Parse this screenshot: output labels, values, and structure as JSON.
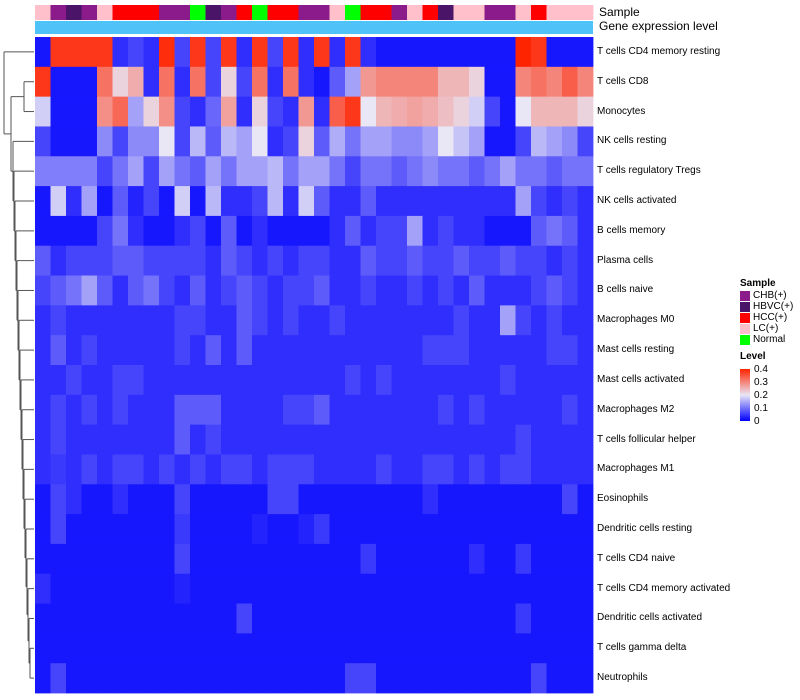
{
  "annotations": {
    "sample_label": "Sample",
    "expression_label": "Gene expression level"
  },
  "legend": {
    "sample_title": "Sample",
    "level_title": "Level",
    "sample_items": [
      {
        "label": "CHB(+)",
        "color": "#8b1a8b"
      },
      {
        "label": "HBVC(+)",
        "color": "#4a1468"
      },
      {
        "label": "HCC(+)",
        "color": "#ff0000"
      },
      {
        "label": "LC(+)",
        "color": "#ffc0cb"
      },
      {
        "label": "Normal",
        "color": "#00ff00"
      }
    ],
    "level_ticks": [
      "0.4",
      "0.3",
      "0.2",
      "0.1",
      "0"
    ]
  },
  "chart_data": {
    "type": "heatmap",
    "title": "",
    "value_range": [
      0,
      0.4
    ],
    "color_scale": [
      "#0000ff",
      "#e9e6f5",
      "#ff2400"
    ],
    "expression_bar_color": "#4fc3f7",
    "sample_colors": {
      "CHB(+)": "#8b1a8b",
      "HBVC(+)": "#4a1468",
      "HCC(+)": "#ff0000",
      "LC(+)": "#ffc0cb",
      "Normal": "#00ff00"
    },
    "column_samples": [
      "LC(+)",
      "CHB(+)",
      "HBVC(+)",
      "CHB(+)",
      "LC(+)",
      "HCC(+)",
      "HCC(+)",
      "HCC(+)",
      "CHB(+)",
      "CHB(+)",
      "Normal",
      "HBVC(+)",
      "CHB(+)",
      "HCC(+)",
      "Normal",
      "HCC(+)",
      "HCC(+)",
      "CHB(+)",
      "CHB(+)",
      "LC(+)",
      "Normal",
      "HCC(+)",
      "HCC(+)",
      "CHB(+)",
      "LC(+)",
      "HCC(+)",
      "HBVC(+)",
      "LC(+)",
      "LC(+)",
      "CHB(+)",
      "CHB(+)",
      "LC(+)",
      "HCC(+)",
      "LC(+)",
      "LC(+)",
      "LC(+)"
    ],
    "rows": [
      "T cells CD4 memory resting",
      "T cells CD8",
      "Monocytes",
      "NK cells resting",
      "T cells regulatory  Tregs",
      "NK cells activated",
      "B cells memory",
      "Plasma cells",
      "B cells naive",
      "Macrophages M0",
      "Mast cells resting",
      "Mast cells activated",
      "Macrophages M2",
      "T cells follicular helper",
      "Macrophages M1",
      "Eosinophils",
      "Dendritic cells resting",
      "T cells CD4 naive",
      "T cells CD4 memory activated",
      "Dendritic cells activated",
      "T cells gamma delta",
      "Neutrophils"
    ],
    "values": [
      [
        0.02,
        0.38,
        0.38,
        0.38,
        0.38,
        0.04,
        0.06,
        0.04,
        0.39,
        0.06,
        0.38,
        0.06,
        0.38,
        0.04,
        0.38,
        0.06,
        0.38,
        0.04,
        0.38,
        0.04,
        0.38,
        0.04,
        0.02,
        0.02,
        0.02,
        0.02,
        0.02,
        0.02,
        0.02,
        0.02,
        0.02,
        0.4,
        0.38,
        0.02,
        0.02,
        0.02
      ],
      [
        0.38,
        0.02,
        0.02,
        0.02,
        0.32,
        0.22,
        0.26,
        0.04,
        0.32,
        0.04,
        0.32,
        0.06,
        0.22,
        0.06,
        0.32,
        0.04,
        0.32,
        0.04,
        0.02,
        0.08,
        0.14,
        0.28,
        0.3,
        0.3,
        0.3,
        0.3,
        0.25,
        0.25,
        0.22,
        0.02,
        0.02,
        0.3,
        0.32,
        0.3,
        0.34,
        0.3
      ],
      [
        0.18,
        0.02,
        0.02,
        0.02,
        0.29,
        0.33,
        0.14,
        0.22,
        0.29,
        0.06,
        0.04,
        0.09,
        0.27,
        0.04,
        0.22,
        0.06,
        0.04,
        0.28,
        0.04,
        0.34,
        0.38,
        0.2,
        0.25,
        0.26,
        0.27,
        0.26,
        0.24,
        0.22,
        0.18,
        0.06,
        0.02,
        0.2,
        0.25,
        0.25,
        0.25,
        0.22
      ],
      [
        0.06,
        0.02,
        0.02,
        0.02,
        0.12,
        0.06,
        0.12,
        0.12,
        0.2,
        0.06,
        0.16,
        0.08,
        0.16,
        0.14,
        0.2,
        0.04,
        0.06,
        0.22,
        0.08,
        0.15,
        0.1,
        0.14,
        0.14,
        0.12,
        0.12,
        0.14,
        0.2,
        0.17,
        0.14,
        0.02,
        0.02,
        0.06,
        0.16,
        0.14,
        0.12,
        0.06
      ],
      [
        0.11,
        0.11,
        0.11,
        0.11,
        0.06,
        0.1,
        0.14,
        0.06,
        0.14,
        0.1,
        0.08,
        0.14,
        0.1,
        0.14,
        0.14,
        0.16,
        0.1,
        0.14,
        0.14,
        0.1,
        0.06,
        0.1,
        0.1,
        0.08,
        0.1,
        0.12,
        0.1,
        0.1,
        0.08,
        0.1,
        0.14,
        0.1,
        0.1,
        0.08,
        0.1,
        0.1
      ],
      [
        0.02,
        0.18,
        0.04,
        0.14,
        0.02,
        0.08,
        0.03,
        0.06,
        0.02,
        0.18,
        0.02,
        0.16,
        0.04,
        0.04,
        0.06,
        0.16,
        0.04,
        0.18,
        0.08,
        0.04,
        0.04,
        0.08,
        0.04,
        0.04,
        0.04,
        0.04,
        0.04,
        0.04,
        0.04,
        0.04,
        0.04,
        0.14,
        0.06,
        0.04,
        0.06,
        0.04
      ],
      [
        0.02,
        0.02,
        0.02,
        0.02,
        0.06,
        0.1,
        0.04,
        0.02,
        0.02,
        0.04,
        0.06,
        0.02,
        0.08,
        0.02,
        0.04,
        0.02,
        0.02,
        0.02,
        0.02,
        0.04,
        0.08,
        0.04,
        0.06,
        0.06,
        0.14,
        0.04,
        0.06,
        0.04,
        0.04,
        0.02,
        0.02,
        0.02,
        0.08,
        0.1,
        0.08,
        0.04
      ],
      [
        0.08,
        0.04,
        0.06,
        0.06,
        0.06,
        0.08,
        0.08,
        0.06,
        0.06,
        0.06,
        0.06,
        0.04,
        0.08,
        0.06,
        0.04,
        0.06,
        0.04,
        0.06,
        0.06,
        0.04,
        0.04,
        0.08,
        0.06,
        0.06,
        0.08,
        0.06,
        0.06,
        0.08,
        0.06,
        0.06,
        0.08,
        0.06,
        0.06,
        0.04,
        0.06,
        0.04
      ],
      [
        0.06,
        0.08,
        0.1,
        0.14,
        0.08,
        0.04,
        0.08,
        0.1,
        0.06,
        0.04,
        0.08,
        0.04,
        0.06,
        0.08,
        0.06,
        0.04,
        0.06,
        0.06,
        0.08,
        0.04,
        0.04,
        0.06,
        0.04,
        0.04,
        0.06,
        0.04,
        0.06,
        0.04,
        0.08,
        0.04,
        0.04,
        0.04,
        0.06,
        0.08,
        0.06,
        0.04
      ],
      [
        0.04,
        0.06,
        0.04,
        0.04,
        0.04,
        0.04,
        0.04,
        0.04,
        0.04,
        0.06,
        0.06,
        0.04,
        0.04,
        0.08,
        0.06,
        0.04,
        0.06,
        0.04,
        0.04,
        0.06,
        0.04,
        0.04,
        0.04,
        0.04,
        0.04,
        0.04,
        0.04,
        0.06,
        0.04,
        0.04,
        0.14,
        0.06,
        0.04,
        0.06,
        0.04,
        0.04
      ],
      [
        0.04,
        0.08,
        0.04,
        0.06,
        0.04,
        0.04,
        0.04,
        0.04,
        0.04,
        0.06,
        0.04,
        0.08,
        0.04,
        0.08,
        0.04,
        0.04,
        0.04,
        0.04,
        0.04,
        0.04,
        0.04,
        0.04,
        0.04,
        0.04,
        0.04,
        0.06,
        0.06,
        0.06,
        0.04,
        0.04,
        0.04,
        0.04,
        0.04,
        0.06,
        0.06,
        0.04
      ],
      [
        0.04,
        0.04,
        0.06,
        0.04,
        0.04,
        0.06,
        0.06,
        0.04,
        0.04,
        0.04,
        0.04,
        0.04,
        0.04,
        0.04,
        0.04,
        0.04,
        0.04,
        0.04,
        0.04,
        0.04,
        0.06,
        0.04,
        0.06,
        0.04,
        0.04,
        0.04,
        0.04,
        0.04,
        0.04,
        0.04,
        0.06,
        0.04,
        0.04,
        0.04,
        0.04,
        0.04
      ],
      [
        0.04,
        0.06,
        0.04,
        0.06,
        0.04,
        0.06,
        0.04,
        0.04,
        0.04,
        0.08,
        0.08,
        0.08,
        0.04,
        0.04,
        0.04,
        0.04,
        0.06,
        0.06,
        0.08,
        0.04,
        0.04,
        0.04,
        0.04,
        0.04,
        0.04,
        0.04,
        0.06,
        0.04,
        0.06,
        0.04,
        0.04,
        0.04,
        0.04,
        0.04,
        0.06,
        0.04
      ],
      [
        0.04,
        0.06,
        0.04,
        0.04,
        0.04,
        0.04,
        0.04,
        0.04,
        0.04,
        0.08,
        0.04,
        0.06,
        0.04,
        0.04,
        0.04,
        0.04,
        0.04,
        0.04,
        0.04,
        0.04,
        0.04,
        0.04,
        0.04,
        0.04,
        0.04,
        0.04,
        0.04,
        0.04,
        0.04,
        0.04,
        0.04,
        0.06,
        0.04,
        0.04,
        0.04,
        0.04
      ],
      [
        0.04,
        0.05,
        0.04,
        0.06,
        0.04,
        0.06,
        0.06,
        0.04,
        0.06,
        0.04,
        0.06,
        0.04,
        0.06,
        0.06,
        0.04,
        0.06,
        0.06,
        0.06,
        0.04,
        0.04,
        0.04,
        0.04,
        0.06,
        0.04,
        0.04,
        0.06,
        0.06,
        0.04,
        0.06,
        0.04,
        0.06,
        0.06,
        0.04,
        0.04,
        0.04,
        0.04
      ],
      [
        0.02,
        0.06,
        0.04,
        0.02,
        0.02,
        0.04,
        0.02,
        0.02,
        0.02,
        0.06,
        0.02,
        0.02,
        0.02,
        0.02,
        0.02,
        0.06,
        0.06,
        0.02,
        0.02,
        0.02,
        0.02,
        0.02,
        0.02,
        0.02,
        0.02,
        0.04,
        0.02,
        0.02,
        0.02,
        0.02,
        0.02,
        0.02,
        0.02,
        0.02,
        0.06,
        0.02
      ],
      [
        0.02,
        0.06,
        0.02,
        0.02,
        0.02,
        0.02,
        0.02,
        0.02,
        0.02,
        0.05,
        0.02,
        0.02,
        0.02,
        0.02,
        0.03,
        0.02,
        0.02,
        0.03,
        0.05,
        0.02,
        0.02,
        0.02,
        0.02,
        0.02,
        0.02,
        0.02,
        0.02,
        0.02,
        0.02,
        0.02,
        0.02,
        0.02,
        0.02,
        0.02,
        0.02,
        0.02
      ],
      [
        0.02,
        0.02,
        0.02,
        0.02,
        0.02,
        0.02,
        0.02,
        0.02,
        0.02,
        0.06,
        0.02,
        0.02,
        0.02,
        0.02,
        0.02,
        0.02,
        0.02,
        0.02,
        0.02,
        0.02,
        0.02,
        0.05,
        0.02,
        0.02,
        0.02,
        0.02,
        0.02,
        0.02,
        0.04,
        0.02,
        0.02,
        0.05,
        0.02,
        0.02,
        0.02,
        0.02
      ],
      [
        0.04,
        0.02,
        0.02,
        0.02,
        0.02,
        0.02,
        0.02,
        0.02,
        0.02,
        0.03,
        0.02,
        0.02,
        0.02,
        0.02,
        0.02,
        0.02,
        0.02,
        0.02,
        0.02,
        0.02,
        0.02,
        0.02,
        0.02,
        0.02,
        0.02,
        0.02,
        0.02,
        0.02,
        0.02,
        0.02,
        0.02,
        0.02,
        0.02,
        0.02,
        0.02,
        0.02
      ],
      [
        0.02,
        0.02,
        0.02,
        0.02,
        0.02,
        0.02,
        0.02,
        0.02,
        0.02,
        0.02,
        0.02,
        0.02,
        0.02,
        0.06,
        0.02,
        0.02,
        0.02,
        0.02,
        0.02,
        0.02,
        0.02,
        0.02,
        0.02,
        0.02,
        0.02,
        0.02,
        0.02,
        0.02,
        0.02,
        0.02,
        0.02,
        0.05,
        0.02,
        0.02,
        0.02,
        0.02
      ],
      [
        0.02,
        0.02,
        0.02,
        0.02,
        0.02,
        0.02,
        0.02,
        0.02,
        0.02,
        0.02,
        0.02,
        0.02,
        0.02,
        0.02,
        0.02,
        0.02,
        0.02,
        0.02,
        0.02,
        0.02,
        0.02,
        0.02,
        0.02,
        0.02,
        0.02,
        0.02,
        0.02,
        0.02,
        0.02,
        0.02,
        0.02,
        0.02,
        0.02,
        0.02,
        0.02,
        0.02
      ],
      [
        0.02,
        0.06,
        0.02,
        0.02,
        0.02,
        0.02,
        0.02,
        0.02,
        0.02,
        0.02,
        0.02,
        0.02,
        0.02,
        0.02,
        0.02,
        0.02,
        0.02,
        0.02,
        0.02,
        0.02,
        0.06,
        0.06,
        0.02,
        0.02,
        0.02,
        0.02,
        0.02,
        0.02,
        0.02,
        0.02,
        0.02,
        0.02,
        0.06,
        0.02,
        0.02,
        0.02
      ]
    ]
  }
}
